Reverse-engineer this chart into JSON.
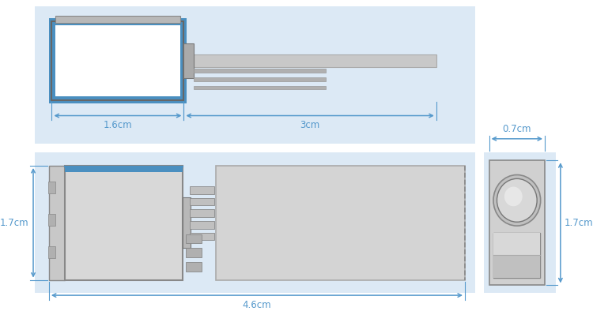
{
  "colors": {
    "panel_bg": "#dce9f5",
    "body_light": "#e0e0e0",
    "body_mid": "#d0d0d0",
    "body_dark": "#c0c0c0",
    "blue_edge": "#4a8fc0",
    "white_fill": "#ffffff",
    "stem_fill": "#c8c8c8",
    "stem_dark": "#b0b0b0",
    "left_face": "#c8c8c8",
    "dim_color": "#5599cc",
    "wire_color": "#a8a8a8",
    "connector_fill": "#b8b8b8",
    "dark_stroke": "#888888",
    "med_stroke": "#aaaaaa"
  },
  "labels": {
    "dim1": "1.6cm",
    "dim2": "3cm",
    "dim3": "4.6cm",
    "dim4": "1.7cm",
    "dim5": "0.7cm",
    "dim6": "1.7cm"
  }
}
